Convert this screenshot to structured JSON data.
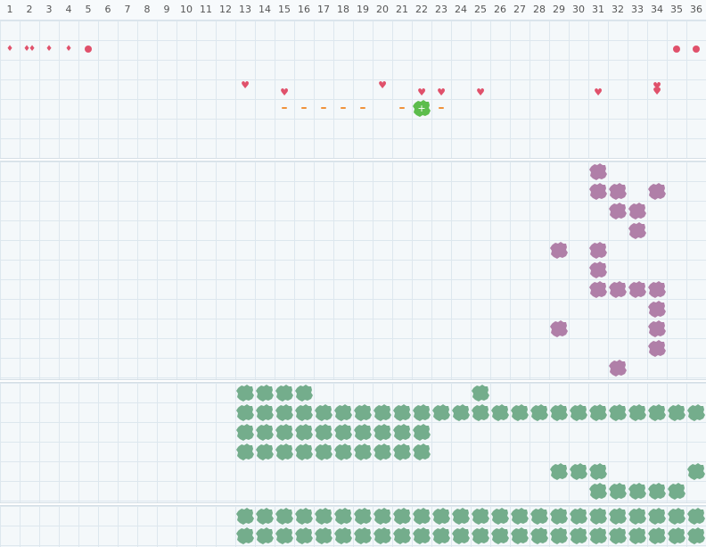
{
  "columns": [
    "1",
    "2",
    "3",
    "4",
    "5",
    "6",
    "7",
    "8",
    "9",
    "10",
    "11",
    "12",
    "13",
    "14",
    "15",
    "16",
    "17",
    "18",
    "19",
    "20",
    "21",
    "22",
    "23",
    "24",
    "25",
    "26",
    "27",
    "28",
    "29",
    "30",
    "31",
    "32",
    "33",
    "34",
    "35",
    "36"
  ],
  "colors": {
    "marker_red": "#e0516b",
    "dash_orange": "#f0923a",
    "purple_tile": "#b07fa8",
    "green_tile": "#74ad8c",
    "selected_green": "#5cbd4c"
  },
  "tile_icon": "grass-tuft-icon",
  "selected": {
    "col": 22,
    "row": 5,
    "icon": "plus-icon"
  }
}
